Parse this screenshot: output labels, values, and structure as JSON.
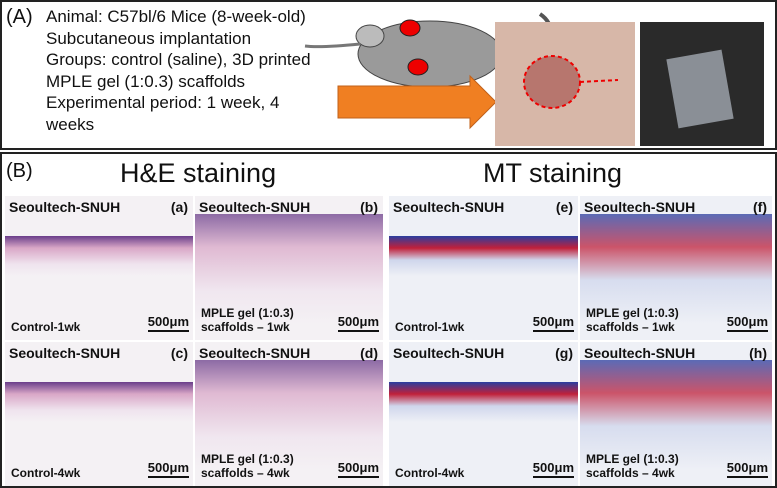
{
  "panel_a": {
    "label": "(A)",
    "lines": [
      "Animal: C57bl/6 Mice (8-week-old)",
      "Subcutaneous implantation",
      "Groups: control (saline), 3D printed",
      "MPLE gel (1:0.3) scaffolds",
      "Experimental period: 1 week, 4",
      "weeks"
    ]
  },
  "panel_b": {
    "label": "(B)",
    "headings": [
      "H&E staining",
      "MT staining"
    ],
    "tiles": [
      {
        "watermark": "Seoultech-SNUH",
        "letter": "(a)",
        "caption": [
          "Control-1wk"
        ],
        "scale": "500μm"
      },
      {
        "watermark": "Seoultech-SNUH",
        "letter": "(b)",
        "caption": [
          "MPLE gel (1:0.3)",
          "scaffolds – 1wk"
        ],
        "scale": "500μm"
      },
      {
        "watermark": "Seoultech-SNUH",
        "letter": "(c)",
        "caption": [
          "Control-4wk"
        ],
        "scale": "500μm"
      },
      {
        "watermark": "Seoultech-SNUH",
        "letter": "(d)",
        "caption": [
          "MPLE gel (1:0.3)",
          "scaffolds – 4wk"
        ],
        "scale": "500μm"
      },
      {
        "watermark": "Seoultech-SNUH",
        "letter": "(e)",
        "caption": [
          "Control-1wk"
        ],
        "scale": "500μm"
      },
      {
        "watermark": "Seoultech-SNUH",
        "letter": "(f)",
        "caption": [
          "MPLE gel (1:0.3)",
          "scaffolds – 1wk"
        ],
        "scale": "500μm"
      },
      {
        "watermark": "Seoultech-SNUH",
        "letter": "(g)",
        "caption": [
          "Control-4wk"
        ],
        "scale": "500μm"
      },
      {
        "watermark": "Seoultech-SNUH",
        "letter": "(h)",
        "caption": [
          "MPLE gel (1:0.3)",
          "scaffolds – 4wk"
        ],
        "scale": "500μm"
      }
    ]
  }
}
